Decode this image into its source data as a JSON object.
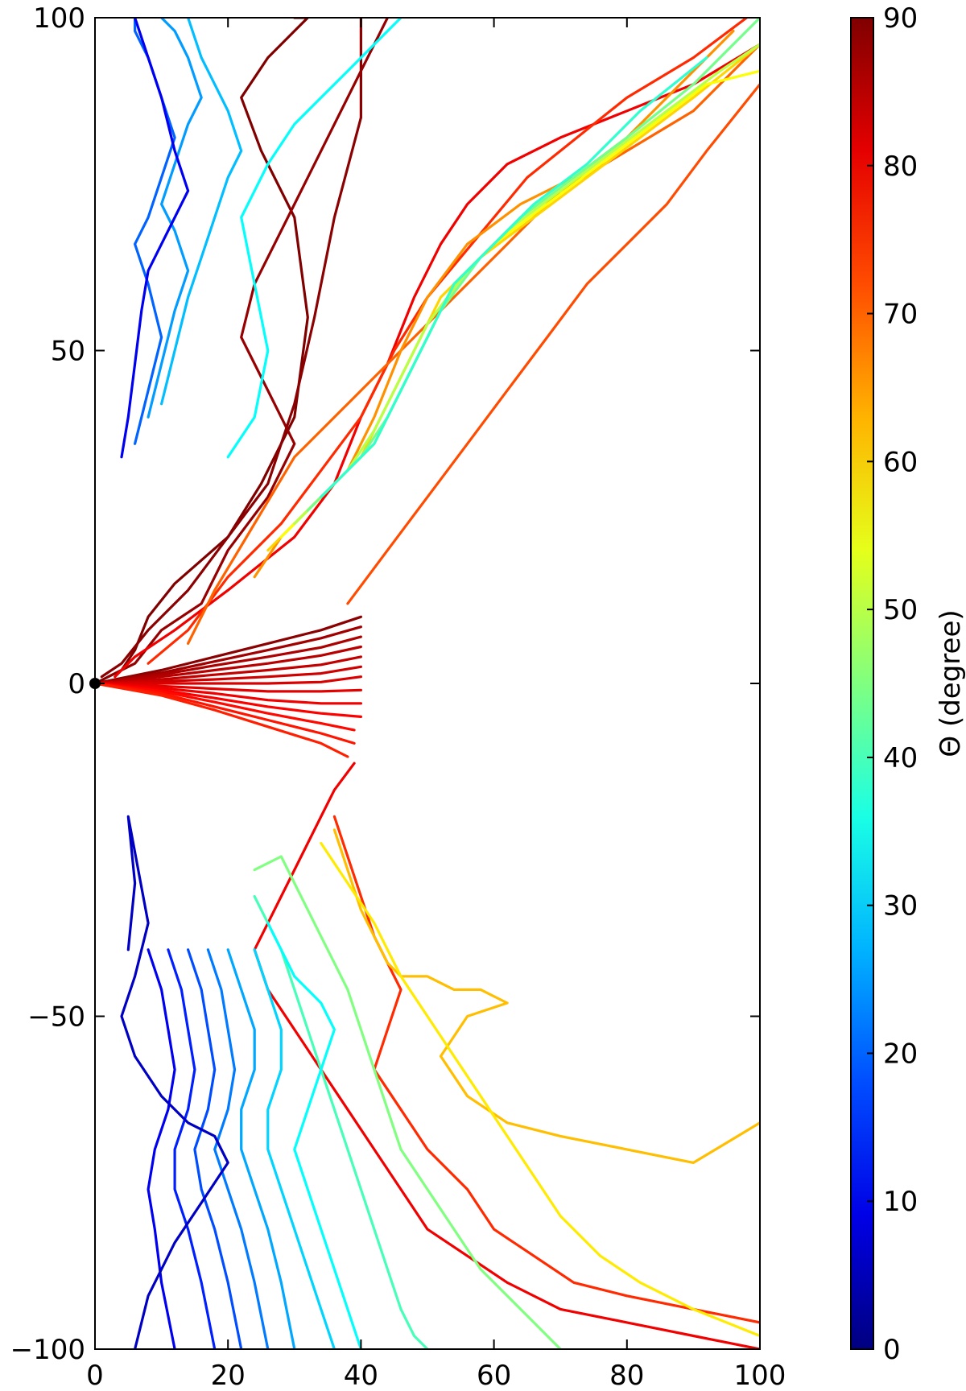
{
  "chart_data": {
    "type": "line",
    "title": "",
    "xlabel": "",
    "ylabel": "",
    "xlim": [
      0,
      100
    ],
    "ylim": [
      -100,
      100
    ],
    "x_ticks": [
      0,
      20,
      40,
      60,
      80,
      100
    ],
    "y_ticks": [
      -100,
      -50,
      0,
      50,
      100
    ],
    "x_tick_labels": [
      "0",
      "20",
      "40",
      "60",
      "80",
      "100"
    ],
    "y_tick_labels": [
      "−100",
      "−50",
      "0",
      "50",
      "100"
    ],
    "colorbar": {
      "label": "Θ (degree)",
      "range": [
        0,
        90
      ],
      "ticks": [
        0,
        10,
        20,
        30,
        40,
        50,
        60,
        70,
        80,
        90
      ],
      "tick_labels": [
        "0",
        "10",
        "20",
        "30",
        "40",
        "50",
        "60",
        "70",
        "80",
        "90"
      ],
      "colormap": "jet"
    },
    "grid": false,
    "series": [
      {
        "theta": 89,
        "x": [
          0,
          10,
          18,
          26,
          34,
          40
        ],
        "y": [
          0,
          2,
          4,
          6,
          8,
          10
        ]
      },
      {
        "theta": 87,
        "x": [
          0,
          10,
          18,
          26,
          34,
          40
        ],
        "y": [
          0,
          1.6,
          3.3,
          5,
          6.8,
          8.5
        ]
      },
      {
        "theta": 86,
        "x": [
          0,
          10,
          18,
          26,
          34,
          40
        ],
        "y": [
          0,
          1.3,
          2.7,
          4,
          5.4,
          7
        ]
      },
      {
        "theta": 85,
        "x": [
          0,
          10,
          18,
          26,
          34,
          40
        ],
        "y": [
          0,
          1,
          2,
          3,
          4.2,
          5.5
        ]
      },
      {
        "theta": 84,
        "x": [
          0,
          10,
          18,
          26,
          34,
          40
        ],
        "y": [
          0,
          0.6,
          1.3,
          2,
          2.8,
          4
        ]
      },
      {
        "theta": 83,
        "x": [
          0,
          10,
          18,
          26,
          34,
          40
        ],
        "y": [
          0,
          0.3,
          0.6,
          1,
          1.5,
          2.5
        ]
      },
      {
        "theta": 82,
        "x": [
          0,
          10,
          18,
          26,
          34,
          40
        ],
        "y": [
          0,
          0,
          0,
          0,
          0.2,
          1
        ]
      },
      {
        "theta": 81,
        "x": [
          0,
          10,
          18,
          26,
          34,
          40
        ],
        "y": [
          0,
          -0.4,
          -0.8,
          -1.2,
          -1.2,
          -1
        ]
      },
      {
        "theta": 80,
        "x": [
          0,
          10,
          18,
          26,
          34,
          40
        ],
        "y": [
          0,
          -0.7,
          -1.5,
          -2.5,
          -3,
          -3
        ]
      },
      {
        "theta": 79,
        "x": [
          0,
          10,
          18,
          26,
          34,
          40
        ],
        "y": [
          0,
          -1,
          -2.2,
          -3.5,
          -4.5,
          -5
        ]
      },
      {
        "theta": 78,
        "x": [
          0,
          10,
          18,
          26,
          34,
          39
        ],
        "y": [
          0,
          -1.2,
          -2.8,
          -4.5,
          -6,
          -7
        ]
      },
      {
        "theta": 77,
        "x": [
          0,
          10,
          18,
          26,
          34,
          39
        ],
        "y": [
          0,
          -1.5,
          -3.5,
          -5.5,
          -7.5,
          -9
        ]
      },
      {
        "theta": 76,
        "x": [
          0,
          10,
          18,
          26,
          34,
          38
        ],
        "y": [
          0,
          -1.8,
          -4,
          -6.5,
          -9,
          -11
        ]
      },
      {
        "theta": 90,
        "x": [
          0,
          4,
          6,
          8,
          12,
          20,
          25,
          30,
          32,
          30,
          25,
          22,
          26,
          30,
          32,
          30
        ],
        "y": [
          0,
          2,
          5,
          10,
          15,
          22,
          30,
          40,
          55,
          70,
          80,
          88,
          94,
          98,
          100,
          100
        ]
      },
      {
        "theta": 89,
        "x": [
          1,
          4,
          8,
          14,
          20,
          26,
          30,
          33,
          36,
          40,
          40
        ],
        "y": [
          1,
          3,
          8,
          14,
          22,
          30,
          42,
          55,
          70,
          85,
          100
        ]
      },
      {
        "theta": 88,
        "x": [
          2,
          6,
          10,
          16,
          20,
          26,
          30,
          26,
          22,
          24,
          30,
          38,
          44
        ],
        "y": [
          1,
          3,
          8,
          12,
          20,
          28,
          36,
          44,
          52,
          60,
          72,
          88,
          100
        ]
      },
      {
        "theta": 80,
        "x": [
          3,
          6,
          12,
          20,
          30,
          36,
          40,
          44,
          48,
          52,
          56,
          62,
          70,
          80,
          90,
          100
        ],
        "y": [
          1,
          4,
          8,
          14,
          22,
          30,
          40,
          48,
          58,
          66,
          72,
          78,
          82,
          86,
          90,
          96
        ]
      },
      {
        "theta": 75,
        "x": [
          8,
          14,
          20,
          28,
          34,
          40,
          45,
          50,
          55,
          60,
          65,
          70,
          75,
          80,
          90,
          98
        ],
        "y": [
          3,
          8,
          16,
          24,
          32,
          40,
          50,
          58,
          64,
          70,
          76,
          80,
          84,
          88,
          94,
          100
        ]
      },
      {
        "theta": 72,
        "x": [
          38,
          44,
          50,
          56,
          62,
          68,
          74,
          80,
          86,
          92,
          100
        ],
        "y": [
          12,
          20,
          28,
          36,
          44,
          52,
          60,
          66,
          72,
          80,
          90
        ]
      },
      {
        "theta": 70,
        "x": [
          14,
          18,
          24,
          30,
          38,
          46,
          54,
          62,
          70,
          80,
          90,
          100
        ],
        "y": [
          6,
          14,
          24,
          34,
          42,
          50,
          58,
          66,
          74,
          80,
          86,
          96
        ]
      },
      {
        "theta": 66,
        "x": [
          24,
          28,
          32,
          38,
          42,
          46,
          50,
          56,
          64,
          72,
          80,
          88,
          96
        ],
        "y": [
          16,
          22,
          26,
          32,
          40,
          50,
          58,
          66,
          72,
          76,
          82,
          90,
          98
        ]
      },
      {
        "theta": 60,
        "x": [
          26,
          30,
          34,
          40,
          44,
          48,
          52,
          58,
          66,
          74,
          82,
          90,
          100
        ],
        "y": [
          20,
          24,
          28,
          34,
          42,
          50,
          58,
          64,
          70,
          76,
          82,
          88,
          96
        ]
      },
      {
        "theta": 56,
        "x": [
          28,
          32,
          36,
          42,
          46,
          50,
          54,
          60,
          68,
          76,
          84,
          92,
          100
        ],
        "y": [
          22,
          26,
          30,
          36,
          44,
          52,
          60,
          66,
          72,
          78,
          84,
          90,
          92
        ]
      },
      {
        "theta": 50,
        "x": [
          30,
          34,
          38,
          42,
          46,
          50,
          56,
          62,
          70,
          78,
          86,
          94,
          100
        ],
        "y": [
          24,
          28,
          32,
          38,
          46,
          54,
          62,
          68,
          74,
          80,
          86,
          92,
          96
        ]
      },
      {
        "theta": 44,
        "x": [
          32,
          36,
          40,
          44,
          48,
          52,
          58,
          64,
          72,
          80,
          90,
          100
        ],
        "y": [
          26,
          30,
          34,
          40,
          48,
          56,
          64,
          70,
          76,
          82,
          90,
          100
        ]
      },
      {
        "theta": 38,
        "x": [
          34,
          38,
          42,
          46,
          50,
          54,
          60,
          66,
          74,
          82,
          92
        ],
        "y": [
          28,
          32,
          36,
          44,
          52,
          60,
          66,
          72,
          78,
          86,
          94
        ]
      },
      {
        "theta": 34,
        "x": [
          20,
          24,
          26,
          24,
          22,
          26,
          30,
          34,
          38,
          42,
          46
        ],
        "y": [
          34,
          40,
          50,
          60,
          70,
          78,
          84,
          88,
          92,
          96,
          100
        ]
      },
      {
        "theta": 20,
        "x": [
          6,
          8,
          10,
          8,
          6,
          8,
          10,
          12,
          10,
          8,
          6,
          6
        ],
        "y": [
          36,
          44,
          52,
          60,
          66,
          70,
          76,
          82,
          88,
          94,
          98,
          100
        ]
      },
      {
        "theta": 25,
        "x": [
          8,
          10,
          12,
          14,
          12,
          10,
          12,
          14,
          16,
          14,
          12,
          10
        ],
        "y": [
          40,
          48,
          56,
          62,
          68,
          72,
          78,
          84,
          88,
          94,
          98,
          100
        ]
      },
      {
        "theta": 28,
        "x": [
          10,
          12,
          14,
          16,
          18,
          20,
          22,
          20,
          18,
          16,
          14
        ],
        "y": [
          42,
          50,
          58,
          64,
          70,
          76,
          80,
          86,
          90,
          94,
          100
        ]
      },
      {
        "theta": 10,
        "x": [
          4,
          5,
          6,
          7,
          8,
          10,
          12,
          14,
          12,
          10,
          8,
          6
        ],
        "y": [
          34,
          40,
          48,
          56,
          62,
          66,
          70,
          74,
          80,
          88,
          94,
          100
        ]
      },
      {
        "theta": 80,
        "x": [
          39,
          36,
          34,
          32,
          30,
          28,
          26,
          24,
          26,
          30,
          34,
          38,
          42,
          46,
          50,
          56,
          62,
          70,
          80,
          90,
          100
        ],
        "y": [
          -12,
          -16,
          -20,
          -24,
          -28,
          -32,
          -36,
          -40,
          -46,
          -52,
          -58,
          -64,
          -70,
          -76,
          -82,
          -86,
          -90,
          -94,
          -96,
          -98,
          -100
        ]
      },
      {
        "theta": 75,
        "x": [
          36,
          38,
          40,
          42,
          44,
          46,
          44,
          42,
          46,
          50,
          56,
          60,
          66,
          72,
          80,
          90,
          100
        ],
        "y": [
          -20,
          -26,
          -32,
          -38,
          -42,
          -46,
          -52,
          -58,
          -64,
          -70,
          -76,
          -82,
          -86,
          -90,
          -92,
          -94,
          -96
        ]
      },
      {
        "theta": 62,
        "x": [
          36,
          38,
          40,
          42,
          44,
          46,
          50,
          54,
          58,
          62,
          56,
          52,
          56,
          62,
          70,
          80,
          90,
          100
        ],
        "y": [
          -22,
          -28,
          -34,
          -38,
          -42,
          -44,
          -44,
          -46,
          -46,
          -48,
          -50,
          -56,
          -62,
          -66,
          -68,
          -70,
          -72,
          -66
        ]
      },
      {
        "theta": 58,
        "x": [
          34,
          38,
          42,
          44,
          46,
          50,
          54,
          58,
          62,
          66,
          70,
          76,
          82,
          90,
          100
        ],
        "y": [
          -24,
          -30,
          -36,
          -40,
          -44,
          -50,
          -56,
          -62,
          -68,
          -74,
          -80,
          -86,
          -90,
          -94,
          -98
        ]
      },
      {
        "theta": 45,
        "x": [
          24,
          28,
          30,
          32,
          34,
          36,
          38,
          40,
          42,
          44,
          46,
          50,
          54,
          58,
          62,
          66,
          70
        ],
        "y": [
          -28,
          -26,
          -30,
          -34,
          -38,
          -42,
          -46,
          -52,
          -58,
          -64,
          -70,
          -76,
          -82,
          -88,
          -92,
          -96,
          -100
        ]
      },
      {
        "theta": 40,
        "x": [
          24,
          26,
          28,
          30,
          32,
          34,
          36,
          38,
          40,
          42,
          44,
          46,
          48,
          50
        ],
        "y": [
          -32,
          -36,
          -40,
          -46,
          -52,
          -58,
          -64,
          -70,
          -76,
          -82,
          -88,
          -94,
          -98,
          -100
        ]
      },
      {
        "theta": 34,
        "x": [
          26,
          28,
          30,
          32,
          34,
          36,
          34,
          32,
          30,
          32,
          34,
          36,
          38,
          40
        ],
        "y": [
          -36,
          -40,
          -44,
          -46,
          -48,
          -52,
          -58,
          -64,
          -70,
          -76,
          -82,
          -88,
          -94,
          -100
        ]
      },
      {
        "theta": 30,
        "x": [
          24,
          26,
          28,
          28,
          26,
          26,
          28,
          30,
          32,
          34,
          36
        ],
        "y": [
          -40,
          -46,
          -52,
          -58,
          -64,
          -70,
          -76,
          -82,
          -88,
          -94,
          -100
        ]
      },
      {
        "theta": 26,
        "x": [
          20,
          22,
          24,
          24,
          22,
          22,
          24,
          26,
          28,
          30
        ],
        "y": [
          -40,
          -46,
          -52,
          -58,
          -64,
          -70,
          -76,
          -82,
          -90,
          -100
        ]
      },
      {
        "theta": 22,
        "x": [
          17,
          19,
          20,
          21,
          20,
          18,
          20,
          22,
          24,
          26
        ],
        "y": [
          -40,
          -46,
          -52,
          -58,
          -64,
          -70,
          -76,
          -82,
          -90,
          -100
        ]
      },
      {
        "theta": 18,
        "x": [
          14,
          16,
          17,
          18,
          17,
          15,
          16,
          18,
          20,
          22
        ],
        "y": [
          -40,
          -46,
          -52,
          -58,
          -64,
          -70,
          -76,
          -82,
          -90,
          -100
        ]
      },
      {
        "theta": 14,
        "x": [
          11,
          13,
          14,
          15,
          14,
          12,
          12,
          14,
          16,
          18
        ],
        "y": [
          -40,
          -46,
          -52,
          -58,
          -64,
          -70,
          -76,
          -82,
          -90,
          -100
        ]
      },
      {
        "theta": 10,
        "x": [
          8,
          10,
          11,
          12,
          11,
          9,
          8,
          9,
          10,
          12
        ],
        "y": [
          -40,
          -46,
          -52,
          -58,
          -64,
          -70,
          -76,
          -82,
          -90,
          -100
        ]
      },
      {
        "theta": 6,
        "x": [
          5,
          6,
          5,
          8,
          6,
          4,
          6,
          10,
          14,
          18,
          20,
          16,
          12,
          8,
          6
        ],
        "y": [
          -40,
          -30,
          -20,
          -36,
          -44,
          -50,
          -56,
          -62,
          -66,
          -68,
          -72,
          -78,
          -84,
          -92,
          -100
        ]
      }
    ]
  }
}
